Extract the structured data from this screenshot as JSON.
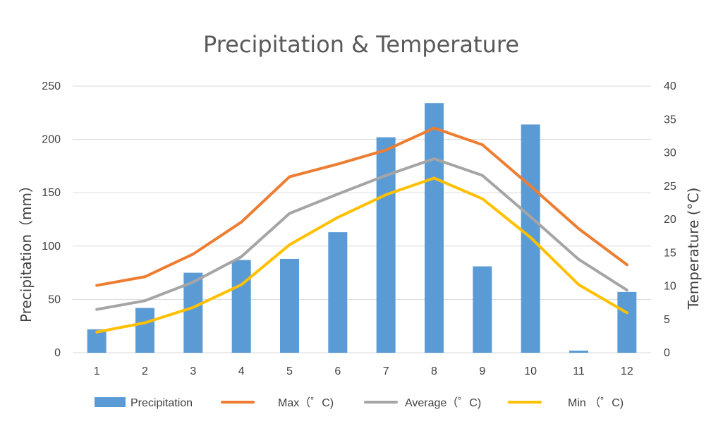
{
  "chart_data": {
    "type": "bar",
    "title": "Precipitation & Temperature",
    "categories": [
      "1",
      "2",
      "3",
      "4",
      "5",
      "6",
      "7",
      "8",
      "9",
      "10",
      "11",
      "12"
    ],
    "y_left": {
      "label": "Precipitation（mm）",
      "range": [
        0,
        250
      ],
      "ticks": [
        "0",
        "50",
        "100",
        "150",
        "200",
        "250"
      ]
    },
    "y_right": {
      "label": "Temperature (°C)",
      "range": [
        0,
        40
      ],
      "ticks": [
        "0",
        "5",
        "10",
        "15",
        "20",
        "25",
        "30",
        "35",
        "40"
      ]
    },
    "grid": true,
    "legend_position": "bottom",
    "series": [
      {
        "name": "Precipitation",
        "type": "bar",
        "axis": "left",
        "color": "#5B9BD5",
        "values": [
          22,
          42,
          75,
          87,
          88,
          113,
          202,
          234,
          81,
          214,
          2,
          57
        ]
      },
      {
        "name": "Max（゜C)",
        "type": "line",
        "axis": "right",
        "color": "#ED7D31",
        "values": [
          10.1,
          11.4,
          14.8,
          19.6,
          26.4,
          28.3,
          30.4,
          33.7,
          31.2,
          25.0,
          18.6,
          13.2
        ]
      },
      {
        "name": "Average（゜C)",
        "type": "line",
        "axis": "right",
        "color": "#A5A5A5",
        "values": [
          6.5,
          7.8,
          10.6,
          14.4,
          20.9,
          23.8,
          26.6,
          29.1,
          26.6,
          20.4,
          14.0,
          9.4
        ]
      },
      {
        "name": "Min （゜C)",
        "type": "line",
        "axis": "right",
        "color": "#FFC000",
        "values": [
          3.1,
          4.5,
          6.8,
          10.2,
          16.2,
          20.3,
          23.7,
          26.2,
          23.1,
          17.3,
          10.2,
          6.0
        ]
      }
    ]
  }
}
